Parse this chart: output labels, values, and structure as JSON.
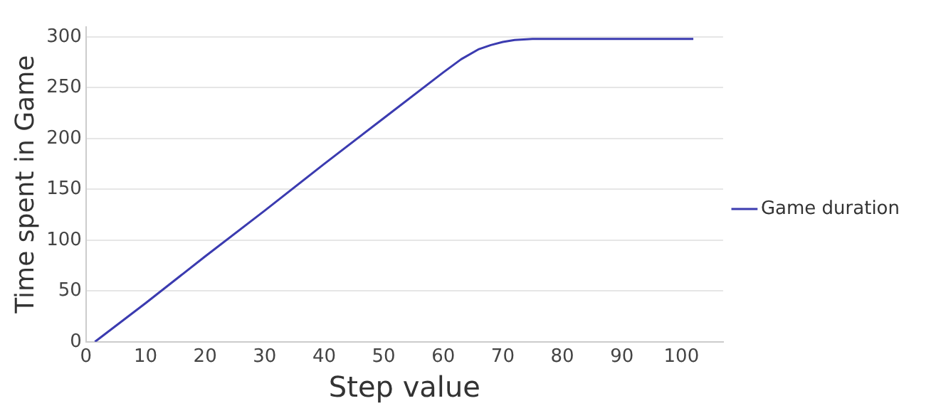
{
  "chart_data": {
    "type": "line",
    "xlabel": "Step value",
    "ylabel": "Time spent in Game",
    "series": [
      {
        "name": "Game duration",
        "color": "#3b3bb0",
        "x": [
          1.5,
          10,
          20,
          30,
          40,
          50,
          60,
          63,
          66,
          68,
          70,
          72,
          75,
          80,
          90,
          102
        ],
        "values": [
          0,
          38,
          84,
          129,
          175,
          220,
          265,
          278,
          288,
          292,
          295,
          297,
          298,
          298,
          298,
          298
        ]
      }
    ],
    "xlim": [
      0,
      107
    ],
    "xticks": [
      0,
      10,
      20,
      30,
      40,
      50,
      60,
      70,
      80,
      90,
      100
    ],
    "ylim": [
      0,
      310
    ],
    "yticks": [
      0,
      50,
      100,
      150,
      200,
      250,
      300
    ],
    "grid": "y",
    "legend": "right",
    "marker": "none",
    "line_style": "solid"
  }
}
